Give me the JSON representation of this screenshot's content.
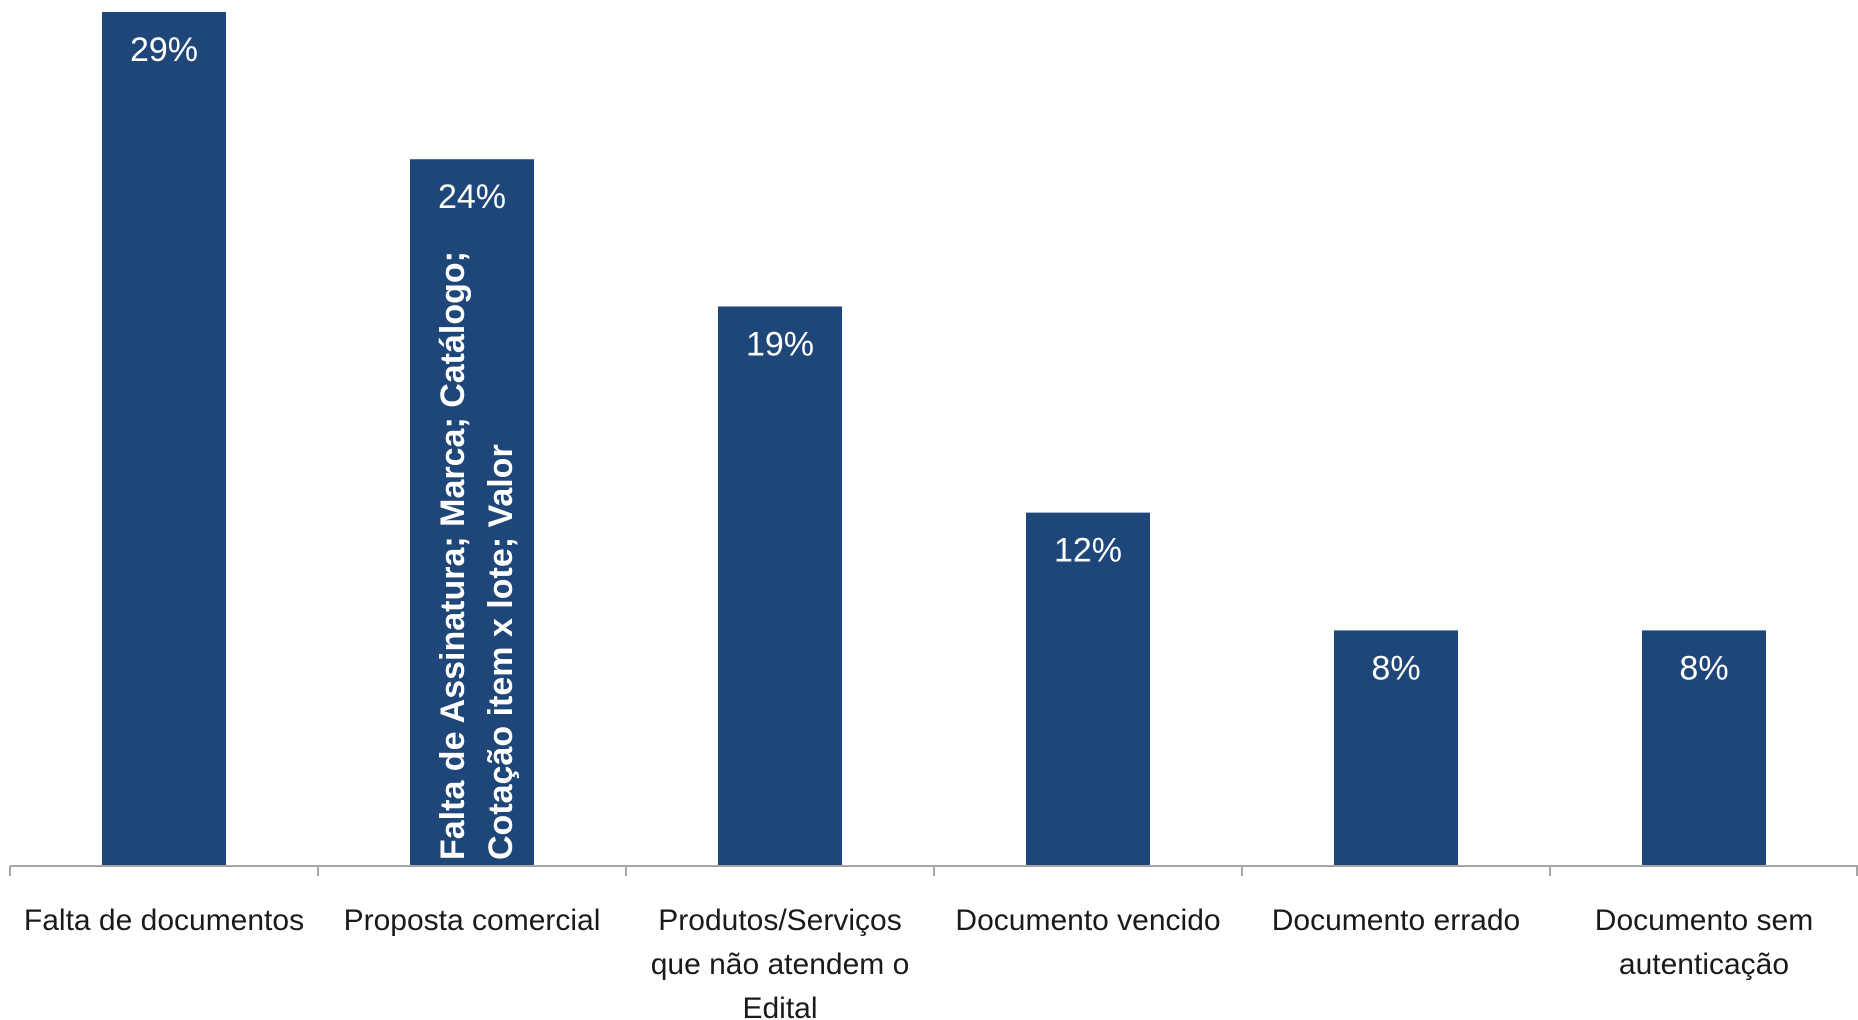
{
  "chart_data": {
    "type": "bar",
    "categories": [
      "Falta de documentos",
      "Proposta comercial",
      "Produtos/Serviços que não atendem o Edital",
      "Documento vencido",
      "Documento errado",
      "Documento sem autenticação"
    ],
    "category_lines": [
      [
        "Falta de documentos"
      ],
      [
        "Proposta comercial"
      ],
      [
        "Produtos/Serviços",
        "que não atendem  o",
        "Edital"
      ],
      [
        "Documento vencido"
      ],
      [
        "Documento errado"
      ],
      [
        "Documento sem",
        "autenticação"
      ]
    ],
    "values": [
      29,
      24,
      19,
      12,
      8,
      8
    ],
    "value_labels": [
      "29%",
      "24%",
      "19%",
      "12%",
      "8%",
      "8%"
    ],
    "ylim": [
      0,
      29
    ],
    "grid": false,
    "legend": "none",
    "bar_color": "#1f4678",
    "axis_color": "#a6a6a6",
    "annotation": {
      "category": "Proposta comercial",
      "lines": [
        "Falta de Assinatura; Marca; Catálogo;",
        "Cotação item  x lote; Valor"
      ]
    }
  }
}
